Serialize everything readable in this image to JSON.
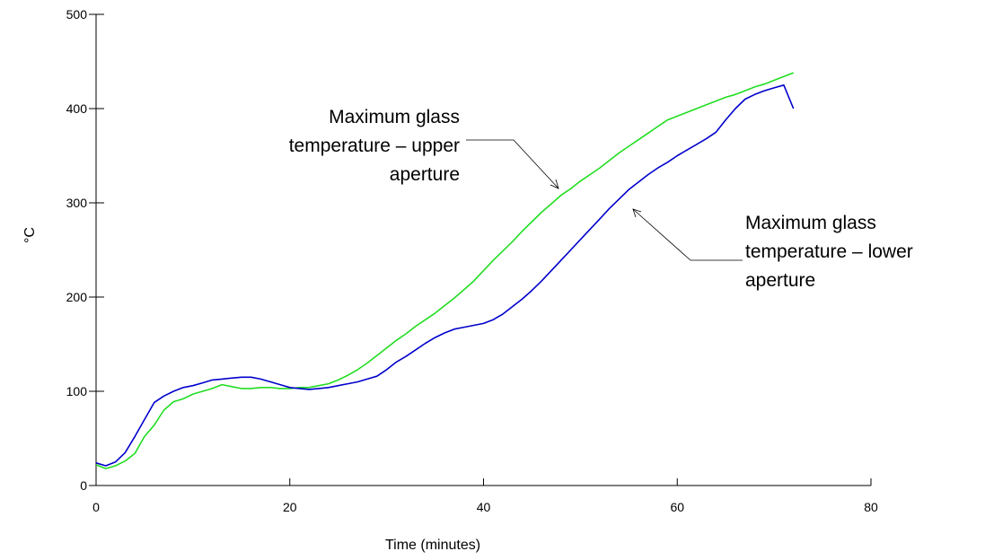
{
  "chart_data": {
    "type": "line",
    "xlabel": "Time (minutes)",
    "ylabel": "°C",
    "xlim": [
      0,
      80
    ],
    "ylim": [
      0,
      500
    ],
    "x_ticks": [
      0,
      20,
      40,
      60,
      80
    ],
    "y_ticks": [
      0,
      100,
      200,
      300,
      400,
      500
    ],
    "grid": false,
    "series": [
      {
        "name": "Maximum glass temperature – upper aperture",
        "color": "#22dd22",
        "x": [
          0,
          1,
          2,
          3,
          4,
          5,
          6,
          7,
          8,
          9,
          10,
          11,
          12,
          13,
          14,
          15,
          16,
          17,
          18,
          19,
          20,
          21,
          22,
          23,
          24,
          25,
          26,
          27,
          28,
          29,
          30,
          31,
          32,
          33,
          34,
          35,
          36,
          37,
          38,
          39,
          40,
          41,
          42,
          43,
          44,
          45,
          46,
          47,
          48,
          49,
          50,
          51,
          52,
          53,
          54,
          55,
          56,
          57,
          58,
          59,
          60,
          61,
          62,
          63,
          64,
          65,
          66,
          67,
          68,
          69,
          70,
          71,
          72
        ],
        "y": [
          22,
          18,
          21,
          26,
          34,
          52,
          64,
          80,
          89,
          92,
          97,
          100,
          103,
          107,
          105,
          103,
          103,
          104,
          104,
          103,
          103,
          104,
          104,
          106,
          108,
          112,
          117,
          123,
          130,
          138,
          146,
          154,
          161,
          169,
          176,
          183,
          191,
          199,
          208,
          217,
          228,
          239,
          249,
          259,
          270,
          280,
          290,
          299,
          308,
          315,
          323,
          330,
          337,
          345,
          353,
          360,
          367,
          374,
          381,
          388,
          392,
          396,
          400,
          404,
          408,
          412,
          415,
          419,
          423,
          426,
          430,
          434,
          438
        ]
      },
      {
        "name": "Maximum glass temperature – lower aperture",
        "color": "#0000cc",
        "x": [
          0,
          1,
          2,
          3,
          4,
          5,
          6,
          7,
          8,
          9,
          10,
          11,
          12,
          13,
          14,
          15,
          16,
          17,
          18,
          19,
          20,
          21,
          22,
          23,
          24,
          25,
          26,
          27,
          28,
          29,
          30,
          31,
          32,
          33,
          34,
          35,
          36,
          37,
          38,
          39,
          40,
          41,
          42,
          43,
          44,
          45,
          46,
          47,
          48,
          49,
          50,
          51,
          52,
          53,
          54,
          55,
          56,
          57,
          58,
          59,
          60,
          61,
          62,
          63,
          64,
          65,
          66,
          67,
          68,
          69,
          70,
          71,
          72
        ],
        "y": [
          24,
          21,
          25,
          35,
          52,
          70,
          88,
          95,
          100,
          104,
          106,
          109,
          112,
          113,
          114,
          115,
          115,
          113,
          110,
          107,
          104,
          103,
          102,
          103,
          104,
          106,
          108,
          110,
          113,
          116,
          123,
          131,
          137,
          144,
          151,
          157,
          162,
          166,
          168,
          170,
          172,
          176,
          182,
          190,
          198,
          207,
          217,
          228,
          239,
          250,
          261,
          272,
          283,
          294,
          304,
          314,
          322,
          330,
          337,
          343,
          350,
          356,
          362,
          368,
          375,
          388,
          400,
          410,
          415,
          419,
          422,
          425,
          400
        ]
      }
    ]
  },
  "annotations": {
    "upper": [
      "Maximum glass",
      "temperature – upper",
      "aperture"
    ],
    "lower": [
      "Maximum glass",
      "temperature – lower",
      "aperture"
    ]
  }
}
